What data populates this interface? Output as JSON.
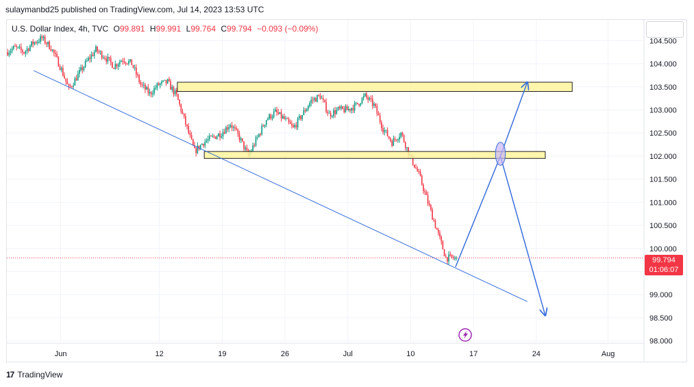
{
  "header": {
    "credit": "sulaymanbd25 published on TradingView.com, Jul 14, 2023 13:53 UTC"
  },
  "legend": {
    "symbol": "U.S. Dollar Index, 4h, TVC",
    "o_label": "O",
    "o": "99.891",
    "h_label": "H",
    "h": "99.991",
    "l_label": "L",
    "l": "99.764",
    "c_label": "C",
    "c": "99.794",
    "change": "−0.093 (−0.09%)"
  },
  "price_badge": {
    "price": "99.794",
    "countdown": "01:06:07"
  },
  "footer": {
    "logo_mark": "17",
    "logo_text": "TradingView"
  },
  "colors": {
    "up": "#089981",
    "down": "#f23645",
    "trendline": "#3a6fdc",
    "zone_fill": "#fff59d",
    "zone_stroke": "#1f1f1f",
    "circle": "#c9b6f2"
  },
  "chart_data": {
    "type": "candlestick",
    "interval": "4h",
    "y_ticks": [
      98.0,
      98.5,
      99.0,
      99.5,
      100.0,
      100.5,
      101.0,
      101.5,
      102.0,
      102.5,
      103.0,
      103.5,
      104.0,
      104.5
    ],
    "y_tick_labels": [
      "98.000",
      "98.500",
      "99.000",
      "99.500",
      "100.000",
      "100.500",
      "101.000",
      "101.500",
      "102.000",
      "102.500",
      "103.000",
      "103.500",
      "104.000",
      "104.500"
    ],
    "ylim": [
      97.95,
      104.95
    ],
    "x_range": [
      "2023-05-26",
      "2023-08-05"
    ],
    "x_ticks": [
      {
        "label": "Jun",
        "date": "2023-06-01"
      },
      {
        "label": "12",
        "date": "2023-06-12"
      },
      {
        "label": "19",
        "date": "2023-06-19"
      },
      {
        "label": "26",
        "date": "2023-06-26"
      },
      {
        "label": "Jul",
        "date": "2023-07-03"
      },
      {
        "label": "10",
        "date": "2023-07-10"
      },
      {
        "label": "17",
        "date": "2023-07-17"
      },
      {
        "label": "24",
        "date": "2023-07-24"
      },
      {
        "label": "Aug",
        "date": "2023-08-01"
      }
    ],
    "close_path": [
      [
        "2023-05-26",
        104.25
      ],
      [
        "2023-05-27",
        104.35
      ],
      [
        "2023-05-28",
        104.25
      ],
      [
        "2023-05-29",
        104.45
      ],
      [
        "2023-05-30",
        104.55
      ],
      [
        "2023-05-31",
        104.35
      ],
      [
        "2023-06-01",
        103.95
      ],
      [
        "2023-06-02",
        103.45
      ],
      [
        "2023-06-03",
        103.75
      ],
      [
        "2023-06-04",
        104.05
      ],
      [
        "2023-06-05",
        104.3
      ],
      [
        "2023-06-06",
        104.15
      ],
      [
        "2023-06-07",
        103.95
      ],
      [
        "2023-06-08",
        104.1
      ],
      [
        "2023-06-09",
        104.0
      ],
      [
        "2023-06-10",
        103.55
      ],
      [
        "2023-06-11",
        103.35
      ],
      [
        "2023-06-12",
        103.55
      ],
      [
        "2023-06-13",
        103.6
      ],
      [
        "2023-06-14",
        103.3
      ],
      [
        "2023-06-15",
        102.7
      ],
      [
        "2023-06-16",
        102.1
      ],
      [
        "2023-06-17",
        102.3
      ],
      [
        "2023-06-18",
        102.4
      ],
      [
        "2023-06-19",
        102.5
      ],
      [
        "2023-06-20",
        102.7
      ],
      [
        "2023-06-21",
        102.4
      ],
      [
        "2023-06-22",
        102.0
      ],
      [
        "2023-06-23",
        102.4
      ],
      [
        "2023-06-24",
        102.8
      ],
      [
        "2023-06-25",
        102.95
      ],
      [
        "2023-06-26",
        102.8
      ],
      [
        "2023-06-27",
        102.6
      ],
      [
        "2023-06-28",
        102.9
      ],
      [
        "2023-06-29",
        103.2
      ],
      [
        "2023-06-30",
        103.3
      ],
      [
        "2023-07-01",
        102.9
      ],
      [
        "2023-07-02",
        103.0
      ],
      [
        "2023-07-03",
        103.0
      ],
      [
        "2023-07-04",
        103.1
      ],
      [
        "2023-07-05",
        103.3
      ],
      [
        "2023-07-06",
        103.1
      ],
      [
        "2023-07-07",
        102.6
      ],
      [
        "2023-07-08",
        102.3
      ],
      [
        "2023-07-09",
        102.5
      ],
      [
        "2023-07-10",
        102.0
      ],
      [
        "2023-07-11",
        101.6
      ],
      [
        "2023-07-12",
        101.0
      ],
      [
        "2023-07-13",
        100.4
      ],
      [
        "2023-07-14",
        99.8
      ],
      [
        "2023-07-15",
        99.794
      ]
    ],
    "current_price": 99.794,
    "drawings": [
      {
        "type": "rectangle",
        "from": [
          "2023-06-14",
          103.6
        ],
        "to": [
          "2023-07-28",
          103.4
        ]
      },
      {
        "type": "rectangle",
        "from": [
          "2023-06-17",
          102.1
        ],
        "to": [
          "2023-07-25",
          101.95
        ]
      },
      {
        "type": "trendline",
        "from": [
          "2023-05-29",
          103.85
        ],
        "to": [
          "2023-07-23",
          98.85
        ]
      },
      {
        "type": "arrow",
        "points": [
          [
            "2023-07-15",
            99.6
          ],
          [
            "2023-07-20",
            102.0
          ],
          [
            "2023-07-23",
            103.6
          ]
        ]
      },
      {
        "type": "arrow",
        "points": [
          [
            "2023-07-20",
            102.0
          ],
          [
            "2023-07-25",
            98.55
          ]
        ]
      },
      {
        "type": "ellipse",
        "center": [
          "2023-07-20",
          102.05
        ],
        "radius_days": 0.55,
        "radius_price": 0.25
      }
    ]
  }
}
